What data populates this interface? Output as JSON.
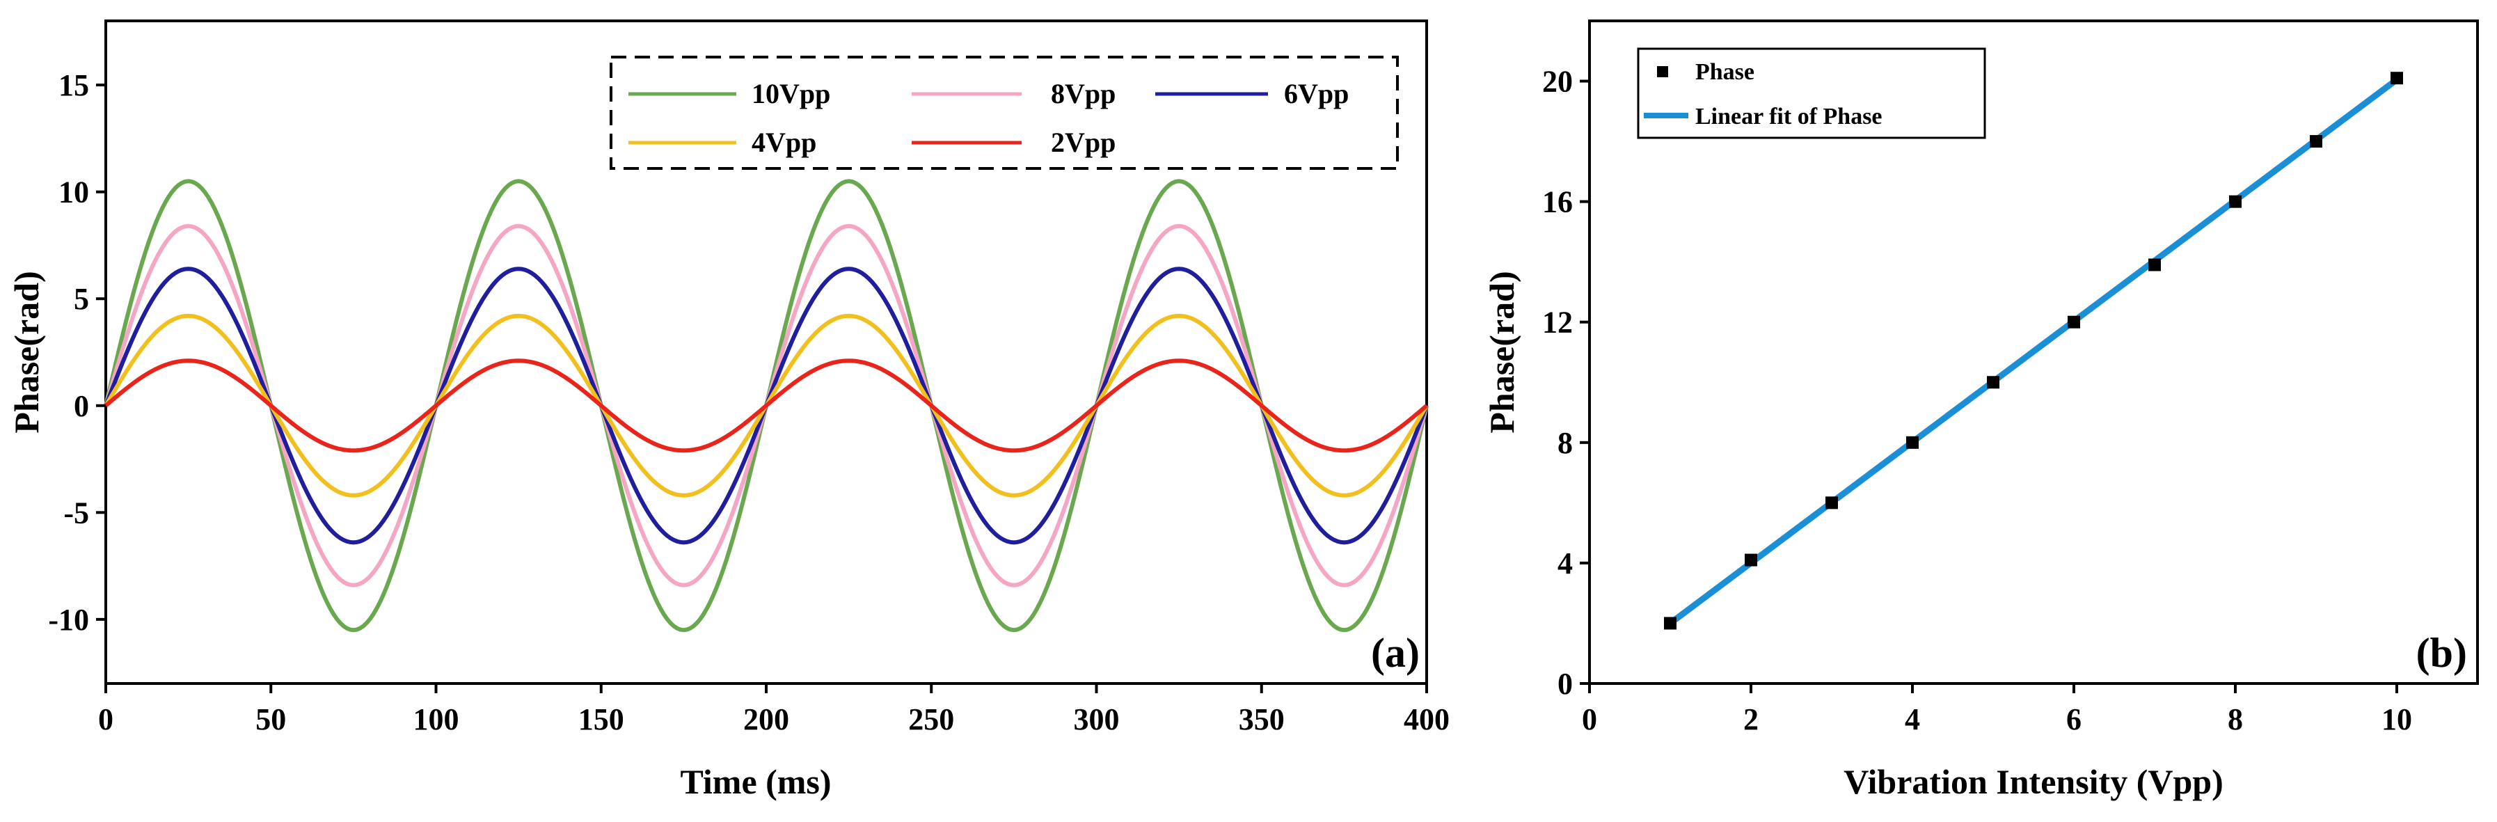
{
  "chart_data": [
    {
      "type": "line",
      "panel_label": "(a)",
      "xlabel": "Time (ms)",
      "ylabel": "Phase(rad)",
      "xlim": [
        0,
        400
      ],
      "ylim": [
        -13,
        18
      ],
      "xticks": [
        "0",
        "50",
        "100",
        "150",
        "200",
        "250",
        "300",
        "350",
        "400"
      ],
      "yticks": [
        "-10",
        "-5",
        "0",
        "5",
        "10",
        "15"
      ],
      "period_ms": 100,
      "legend_position": "top-right",
      "series": [
        {
          "name": "10Vpp",
          "amplitude": 10.5,
          "color": "#6aa84f"
        },
        {
          "name": "8Vpp",
          "amplitude": 8.4,
          "color": "#f4a6c4"
        },
        {
          "name": "6Vpp",
          "amplitude": 6.4,
          "color": "#1f1f9e"
        },
        {
          "name": "4Vpp",
          "amplitude": 4.2,
          "color": "#f2c01e"
        },
        {
          "name": "2Vpp",
          "amplitude": 2.1,
          "color": "#e8241b"
        }
      ]
    },
    {
      "type": "scatter",
      "panel_label": "(b)",
      "xlabel": "Vibration Intensity (Vpp)",
      "ylabel": "Phase(rad)",
      "xlim": [
        0,
        11
      ],
      "ylim": [
        0,
        22
      ],
      "xticks": [
        "0",
        "2",
        "4",
        "6",
        "8",
        "10"
      ],
      "yticks": [
        "0",
        "4",
        "8",
        "12",
        "16",
        "20"
      ],
      "legend_position": "top-left",
      "series": [
        {
          "name": "Phase",
          "kind": "points",
          "color": "#000000",
          "x": [
            1,
            2,
            3,
            4,
            5,
            6,
            7,
            8,
            9,
            10
          ],
          "y": [
            2.0,
            4.1,
            6.0,
            8.0,
            10.0,
            12.0,
            13.9,
            16.0,
            18.0,
            20.1
          ]
        },
        {
          "name": "Linear fit of Phase",
          "kind": "line",
          "color": "#1a8fd6",
          "x": [
            1,
            10
          ],
          "y": [
            2.0,
            20.05
          ]
        }
      ]
    }
  ]
}
